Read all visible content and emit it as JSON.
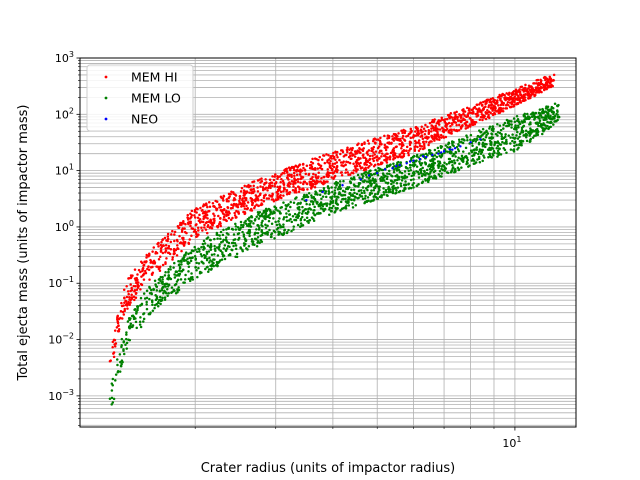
{
  "chart_data": {
    "type": "scatter",
    "title": "",
    "xlabel": "Crater radius (units of impactor radius)",
    "ylabel": "Total ejecta mass (units of impactor mass)",
    "x_scale": "log",
    "y_scale": "log",
    "xlim": [
      1.12,
      13.6
    ],
    "ylim": [
      0.00028,
      1000
    ],
    "grid": "major and minor, both axes",
    "legend_position": "top-left",
    "x_ticks": [
      {
        "value": 10,
        "base": "10",
        "exp": "1"
      }
    ],
    "y_ticks": [
      {
        "value": 0.001,
        "base": "10",
        "exp": "−3"
      },
      {
        "value": 0.01,
        "base": "10",
        "exp": "−2"
      },
      {
        "value": 0.1,
        "base": "10",
        "exp": "−1"
      },
      {
        "value": 1,
        "base": "10",
        "exp": "0"
      },
      {
        "value": 10,
        "base": "10",
        "exp": "1"
      },
      {
        "value": 100,
        "base": "10",
        "exp": "2"
      },
      {
        "value": 1000,
        "base": "10",
        "exp": "3"
      }
    ],
    "series": [
      {
        "name": "MEM HI",
        "color": "#ff0000",
        "marker": "dot",
        "x_range": [
          1.3,
          12.2
        ],
        "band": {
          "lower": [
            [
              1.3,
              0.002
            ],
            [
              1.4,
              0.03
            ],
            [
              1.6,
              0.12
            ],
            [
              2.0,
              0.6
            ],
            [
              2.8,
              2.4
            ],
            [
              4.0,
              6.5
            ],
            [
              6.0,
              20
            ],
            [
              8.0,
              60
            ],
            [
              10.0,
              140
            ],
            [
              11.5,
              250
            ],
            [
              12.2,
              320
            ]
          ],
          "upper": [
            [
              1.3,
              0.006
            ],
            [
              1.4,
              0.1
            ],
            [
              1.6,
              0.4
            ],
            [
              2.0,
              2.2
            ],
            [
              2.8,
              7.5
            ],
            [
              4.0,
              22
            ],
            [
              6.0,
              60
            ],
            [
              8.0,
              140
            ],
            [
              10.0,
              280
            ],
            [
              11.5,
              450
            ],
            [
              12.2,
              520
            ]
          ]
        }
      },
      {
        "name": "MEM LO",
        "color": "#008000",
        "marker": "dot",
        "x_range": [
          1.3,
          12.5
        ],
        "band": {
          "lower": [
            [
              1.3,
              0.0004
            ],
            [
              1.4,
              0.005
            ],
            [
              1.6,
              0.03
            ],
            [
              2.0,
              0.12
            ],
            [
              2.8,
              0.5
            ],
            [
              4.0,
              1.7
            ],
            [
              6.0,
              5.0
            ],
            [
              8.0,
              12
            ],
            [
              10.0,
              22
            ],
            [
              11.5,
              45
            ],
            [
              12.5,
              80
            ]
          ],
          "upper": [
            [
              1.3,
              0.002
            ],
            [
              1.4,
              0.02
            ],
            [
              1.6,
              0.1
            ],
            [
              2.0,
              0.5
            ],
            [
              2.8,
              2.0
            ],
            [
              4.0,
              6.0
            ],
            [
              6.0,
              18
            ],
            [
              8.0,
              45
            ],
            [
              10.0,
              90
            ],
            [
              11.5,
              130
            ],
            [
              12.5,
              170
            ]
          ]
        }
      },
      {
        "name": "NEO",
        "color": "#0000ff",
        "marker": "dot",
        "points": [
          [
            3.5,
            3.0
          ],
          [
            3.8,
            4.2
          ],
          [
            4.2,
            5.5
          ],
          [
            4.6,
            7.0
          ],
          [
            5.0,
            9.0
          ],
          [
            5.2,
            10.5
          ],
          [
            5.4,
            11.0
          ],
          [
            5.6,
            12.5
          ],
          [
            5.8,
            13.5
          ],
          [
            6.0,
            15.0
          ],
          [
            6.2,
            16.0
          ],
          [
            6.4,
            17.5
          ],
          [
            6.6,
            19.0
          ],
          [
            6.8,
            20.0
          ],
          [
            7.0,
            22.0
          ],
          [
            7.2,
            24.0
          ],
          [
            7.4,
            25.0
          ],
          [
            7.6,
            27.0
          ],
          [
            8.0,
            32.0
          ],
          [
            8.4,
            36.0
          ],
          [
            5.9,
            14.5
          ],
          [
            6.3,
            18.0
          ],
          [
            6.9,
            21.0
          ],
          [
            7.3,
            23.5
          ],
          [
            4.8,
            8.2
          ],
          [
            5.5,
            12.0
          ]
        ]
      }
    ]
  }
}
